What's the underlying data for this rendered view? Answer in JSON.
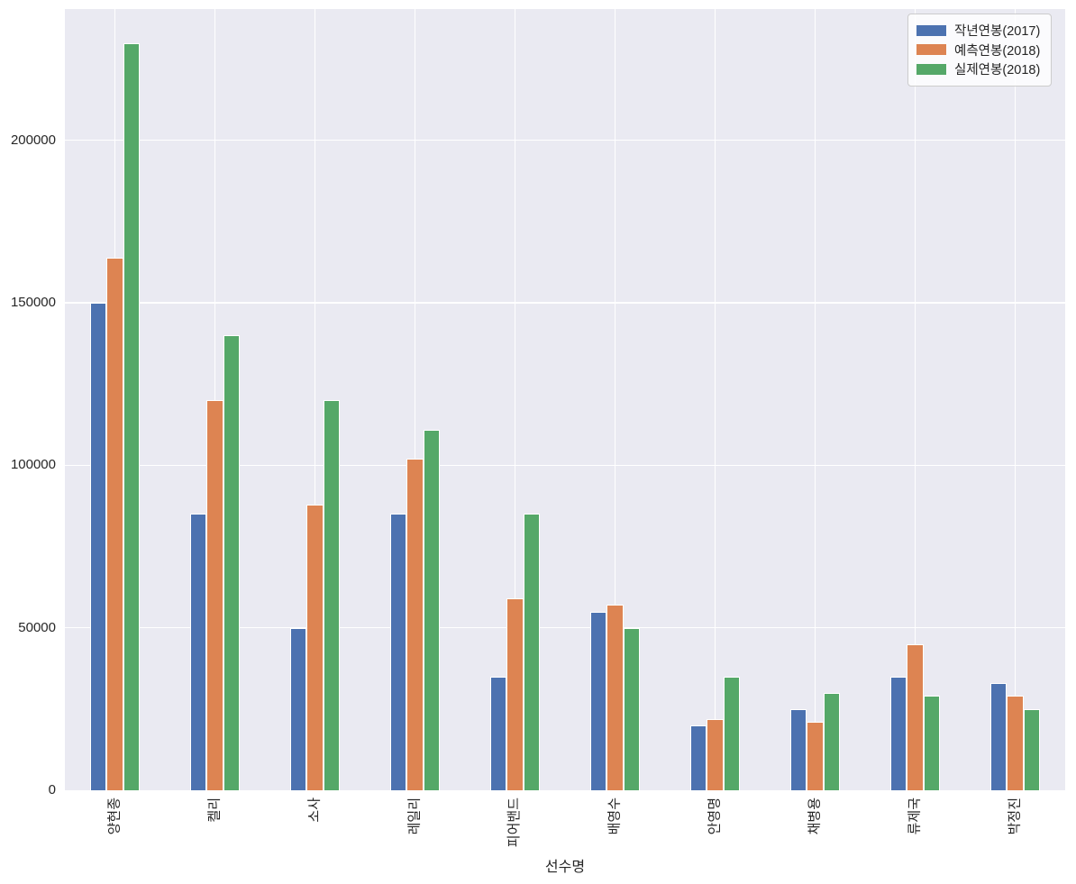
{
  "chart_data": {
    "type": "bar",
    "title": "",
    "xlabel": "선수명",
    "ylabel": "",
    "categories": [
      "양현종",
      "켈리",
      "소사",
      "레일리",
      "피어밴드",
      "배영수",
      "안영명",
      "채병용",
      "류제국",
      "박정진"
    ],
    "series": [
      {
        "name": "작년연봉(2017)",
        "color": "#4c72b0",
        "values": [
          150000,
          85000,
          50000,
          85000,
          35000,
          55000,
          20000,
          25000,
          35000,
          33000
        ]
      },
      {
        "name": "예측연봉(2018)",
        "color": "#dd8452",
        "values": [
          164000,
          120000,
          88000,
          102000,
          59000,
          57000,
          22000,
          21000,
          45000,
          29000
        ]
      },
      {
        "name": "실제연봉(2018)",
        "color": "#55a868",
        "values": [
          230000,
          140000,
          120000,
          111000,
          85000,
          50000,
          35000,
          30000,
          29000,
          25000
        ]
      }
    ],
    "yticks": [
      0,
      50000,
      100000,
      150000,
      200000
    ],
    "ylim": [
      0,
      240400
    ],
    "grid": true,
    "legend_position": "upper right",
    "plot_background": "#eaeaf2",
    "gridline_color": "#ffffff"
  }
}
